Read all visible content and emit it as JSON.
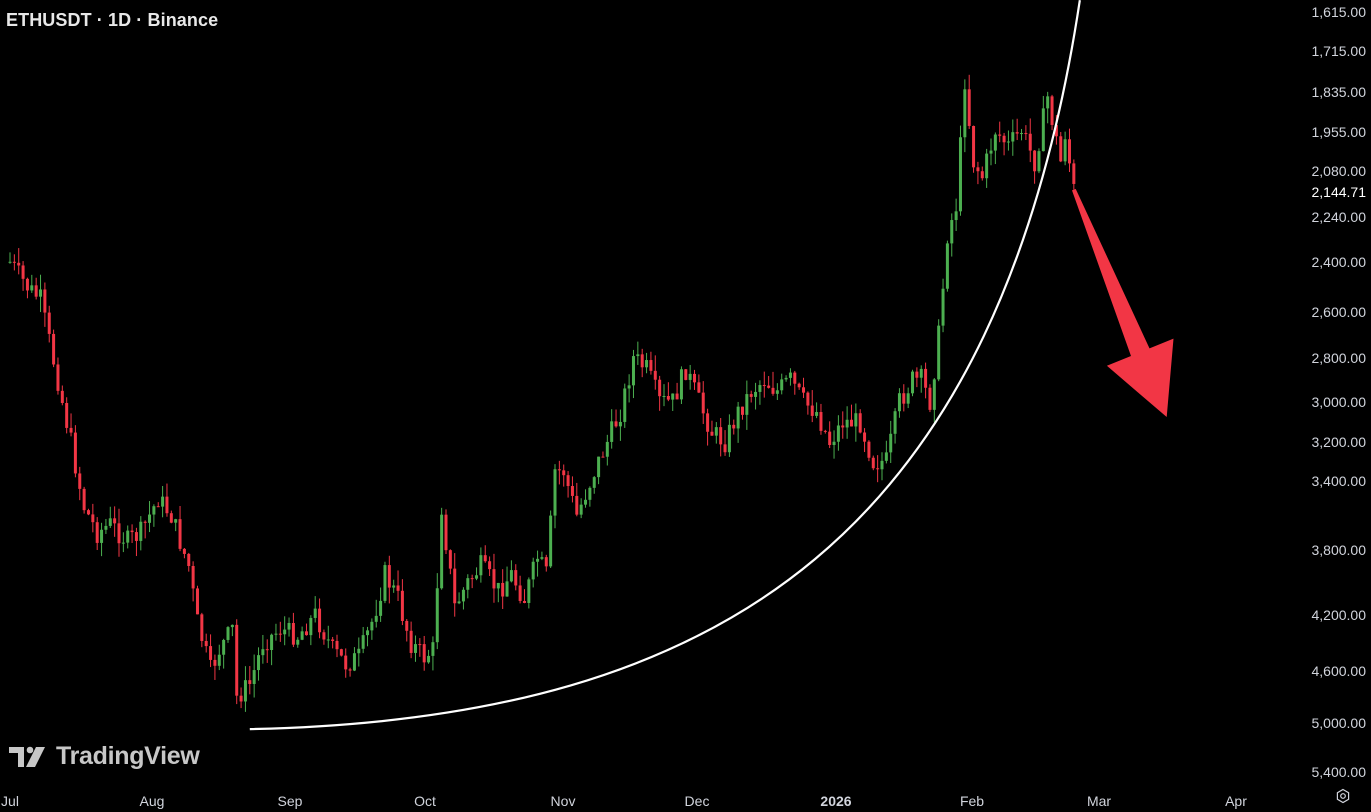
{
  "header": {
    "title": "ETHUSDT · 1D · Binance"
  },
  "branding": {
    "logo_text": "TradingView",
    "logo_icon": "tradingview-logo-icon"
  },
  "controls": {
    "settings_icon": "gear-icon"
  },
  "colors": {
    "background": "#000000",
    "up": "#4caf50",
    "down": "#f23645",
    "arrow": "#f23645",
    "curve": "#ffffff",
    "axis_text": "#d1d4dc"
  },
  "chart_data": {
    "type": "candlestick",
    "title": "ETHUSDT · 1D · Binance",
    "y_scale": "inverted",
    "y_ticks": [
      1615,
      1715,
      1835,
      1955,
      2080,
      2240,
      2400,
      2600,
      2800,
      3000,
      3200,
      3400,
      3800,
      4200,
      4600,
      5000,
      5400
    ],
    "y_tick_labels": [
      "1,615.00",
      "1,715.00",
      "1,835.00",
      "1,955.00",
      "2,080.00",
      "2,240.00",
      "2,400.00",
      "2,600.00",
      "2,800.00",
      "3,000.00",
      "3,200.00",
      "3,400.00",
      "3,800.00",
      "4,200.00",
      "4,600.00",
      "5,000.00",
      "5,400.00"
    ],
    "last_price_label": "2,144.71",
    "x_ticks": [
      "Jul",
      "Aug",
      "Sep",
      "Oct",
      "Nov",
      "Dec",
      "2026",
      "Feb",
      "Mar",
      "Apr"
    ],
    "close_path": [
      {
        "date": "2025-07-01",
        "value": 2400
      },
      {
        "date": "2025-07-05",
        "value": 2500
      },
      {
        "date": "2025-07-08",
        "value": 2550
      },
      {
        "date": "2025-07-12",
        "value": 2900
      },
      {
        "date": "2025-07-15",
        "value": 3200
      },
      {
        "date": "2025-07-18",
        "value": 3550
      },
      {
        "date": "2025-07-21",
        "value": 3700
      },
      {
        "date": "2025-07-24",
        "value": 3650
      },
      {
        "date": "2025-07-28",
        "value": 3750
      },
      {
        "date": "2025-07-31",
        "value": 3700
      },
      {
        "date": "2025-08-04",
        "value": 3500
      },
      {
        "date": "2025-08-07",
        "value": 3600
      },
      {
        "date": "2025-08-11",
        "value": 3900
      },
      {
        "date": "2025-08-13",
        "value": 4250
      },
      {
        "date": "2025-08-16",
        "value": 4600
      },
      {
        "date": "2025-08-18",
        "value": 4450
      },
      {
        "date": "2025-08-21",
        "value": 4300
      },
      {
        "date": "2025-08-22",
        "value": 4800
      },
      {
        "date": "2025-08-25",
        "value": 4700
      },
      {
        "date": "2025-08-28",
        "value": 4400
      },
      {
        "date": "2025-09-01",
        "value": 4300
      },
      {
        "date": "2025-09-05",
        "value": 4350
      },
      {
        "date": "2025-09-09",
        "value": 4200
      },
      {
        "date": "2025-09-13",
        "value": 4450
      },
      {
        "date": "2025-09-16",
        "value": 4550
      },
      {
        "date": "2025-09-19",
        "value": 4500
      },
      {
        "date": "2025-09-22",
        "value": 4250
      },
      {
        "date": "2025-09-25",
        "value": 3950
      },
      {
        "date": "2025-09-28",
        "value": 4100
      },
      {
        "date": "2025-10-01",
        "value": 4400
      },
      {
        "date": "2025-10-04",
        "value": 4500
      },
      {
        "date": "2025-10-06",
        "value": 4450
      },
      {
        "date": "2025-10-08",
        "value": 3550
      },
      {
        "date": "2025-10-11",
        "value": 4150
      },
      {
        "date": "2025-10-14",
        "value": 4000
      },
      {
        "date": "2025-10-17",
        "value": 3900
      },
      {
        "date": "2025-10-21",
        "value": 4050
      },
      {
        "date": "2025-10-24",
        "value": 3950
      },
      {
        "date": "2025-10-27",
        "value": 4100
      },
      {
        "date": "2025-10-30",
        "value": 3850
      },
      {
        "date": "2025-11-01",
        "value": 3950
      },
      {
        "date": "2025-11-03",
        "value": 3350
      },
      {
        "date": "2025-11-05",
        "value": 3350
      },
      {
        "date": "2025-11-08",
        "value": 3600
      },
      {
        "date": "2025-11-12",
        "value": 3350
      },
      {
        "date": "2025-11-15",
        "value": 3200
      },
      {
        "date": "2025-11-18",
        "value": 3050
      },
      {
        "date": "2025-11-21",
        "value": 2800
      },
      {
        "date": "2025-11-24",
        "value": 2850
      },
      {
        "date": "2025-11-27",
        "value": 3000
      },
      {
        "date": "2025-11-30",
        "value": 3000
      },
      {
        "date": "2025-12-03",
        "value": 2850
      },
      {
        "date": "2025-12-06",
        "value": 3000
      },
      {
        "date": "2025-12-09",
        "value": 3150
      },
      {
        "date": "2025-12-12",
        "value": 3200
      },
      {
        "date": "2025-12-15",
        "value": 3050
      },
      {
        "date": "2025-12-18",
        "value": 2950
      },
      {
        "date": "2025-12-21",
        "value": 2900
      },
      {
        "date": "2025-12-24",
        "value": 2950
      },
      {
        "date": "2025-12-27",
        "value": 2900
      },
      {
        "date": "2025-12-30",
        "value": 3000
      },
      {
        "date": "2026-01-02",
        "value": 3050
      },
      {
        "date": "2026-01-05",
        "value": 3200
      },
      {
        "date": "2026-01-08",
        "value": 3100
      },
      {
        "date": "2026-01-12",
        "value": 3100
      },
      {
        "date": "2026-01-15",
        "value": 3300
      },
      {
        "date": "2026-01-18",
        "value": 3300
      },
      {
        "date": "2026-01-21",
        "value": 3000
      },
      {
        "date": "2026-01-24",
        "value": 2900
      },
      {
        "date": "2026-01-26",
        "value": 2900
      },
      {
        "date": "2026-01-28",
        "value": 3000
      },
      {
        "date": "2026-01-30",
        "value": 2700
      },
      {
        "date": "2026-02-01",
        "value": 2300
      },
      {
        "date": "2026-02-03",
        "value": 2200
      },
      {
        "date": "2026-02-05",
        "value": 1800
      },
      {
        "date": "2026-02-07",
        "value": 2050
      },
      {
        "date": "2026-02-09",
        "value": 2100
      },
      {
        "date": "2026-02-12",
        "value": 1950
      },
      {
        "date": "2026-02-15",
        "value": 2000
      },
      {
        "date": "2026-02-18",
        "value": 1950
      },
      {
        "date": "2026-02-21",
        "value": 2050
      },
      {
        "date": "2026-02-24",
        "value": 1850
      },
      {
        "date": "2026-02-27",
        "value": 2050
      },
      {
        "date": "2026-02-28",
        "value": 1960
      },
      {
        "date": "2026-03-02",
        "value": 2145
      }
    ],
    "swing_low": {
      "date": "2025-08-25",
      "value": 5000
    },
    "swing_high": {
      "date": "2026-02-05",
      "value": 1700
    },
    "annotations": [
      {
        "type": "curve",
        "from": {
          "date": "2025-08-25",
          "value": 5050
        },
        "to": {
          "date": "2026-03-02",
          "value": 1600
        }
      },
      {
        "type": "arrow",
        "direction": "down",
        "from": {
          "date": "2026-03-02",
          "value": 2145
        },
        "to": {
          "date": "2026-03-21",
          "value": 3050
        }
      }
    ]
  }
}
